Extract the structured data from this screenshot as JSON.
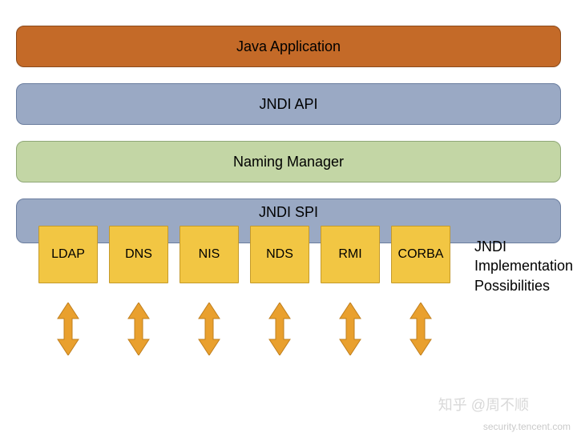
{
  "layers": {
    "app": {
      "label": "Java Application",
      "bg": "#c46a28",
      "border": "#8a4a1c"
    },
    "api": {
      "label": "JNDI API",
      "bg": "#9aa9c4",
      "border": "#6a7d9e"
    },
    "naming": {
      "label": "Naming Manager",
      "bg": "#c3d6a5",
      "border": "#8fa777"
    },
    "spi": {
      "label": "JNDI SPI",
      "bg": "#9aa9c4",
      "border": "#6a7d9e"
    }
  },
  "spi": {
    "box_bg": "#f2c643",
    "box_border": "#c49a2b",
    "items": [
      "LDAP",
      "DNS",
      "NIS",
      "NDS",
      "RMI",
      "CORBA"
    ]
  },
  "arrows": {
    "fill": "#e9a02e",
    "stroke": "#c07f1e"
  },
  "side_label": "JNDI\nImplementation\nPossibilities",
  "watermarks": {
    "zhihu": "知乎 @周不顺",
    "source": "security.tencent.com"
  },
  "typography": {
    "layer_fontsize": 18,
    "impl_fontsize": 16,
    "side_fontsize": 18
  }
}
